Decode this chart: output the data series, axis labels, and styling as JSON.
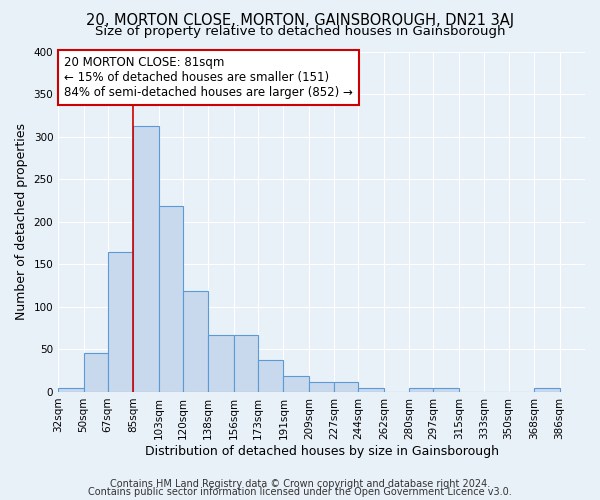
{
  "title": "20, MORTON CLOSE, MORTON, GAINSBOROUGH, DN21 3AJ",
  "subtitle": "Size of property relative to detached houses in Gainsborough",
  "xlabel": "Distribution of detached houses by size in Gainsborough",
  "ylabel": "Number of detached properties",
  "bin_labels": [
    "32sqm",
    "50sqm",
    "67sqm",
    "85sqm",
    "103sqm",
    "120sqm",
    "138sqm",
    "156sqm",
    "173sqm",
    "191sqm",
    "209sqm",
    "227sqm",
    "244sqm",
    "262sqm",
    "280sqm",
    "297sqm",
    "315sqm",
    "333sqm",
    "350sqm",
    "368sqm",
    "386sqm"
  ],
  "bin_edges": [
    32,
    50,
    67,
    85,
    103,
    120,
    138,
    156,
    173,
    191,
    209,
    227,
    244,
    262,
    280,
    297,
    315,
    333,
    350,
    368,
    386
  ],
  "bin_width": 18,
  "bar_heights": [
    5,
    46,
    165,
    312,
    219,
    119,
    67,
    67,
    38,
    19,
    12,
    12,
    5,
    0,
    5,
    5,
    0,
    0,
    0,
    5
  ],
  "bar_color": "#c8d9ed",
  "bar_edge_color": "#5b9bd5",
  "reference_line_x": 85,
  "reference_line_color": "#cc0000",
  "annotation_text": "20 MORTON CLOSE: 81sqm\n← 15% of detached houses are smaller (151)\n84% of semi-detached houses are larger (852) →",
  "annotation_box_color": "#ffffff",
  "annotation_box_edge": "#cc0000",
  "ylim": [
    0,
    400
  ],
  "yticks": [
    0,
    50,
    100,
    150,
    200,
    250,
    300,
    350,
    400
  ],
  "bg_color": "#e8f0f8",
  "grid_color": "#ffffff",
  "footer_line1": "Contains HM Land Registry data © Crown copyright and database right 2024.",
  "footer_line2": "Contains public sector information licensed under the Open Government Licence v3.0.",
  "title_fontsize": 10.5,
  "subtitle_fontsize": 9.5,
  "axis_label_fontsize": 9,
  "tick_fontsize": 7.5,
  "annotation_fontsize": 8.5,
  "footer_fontsize": 7
}
